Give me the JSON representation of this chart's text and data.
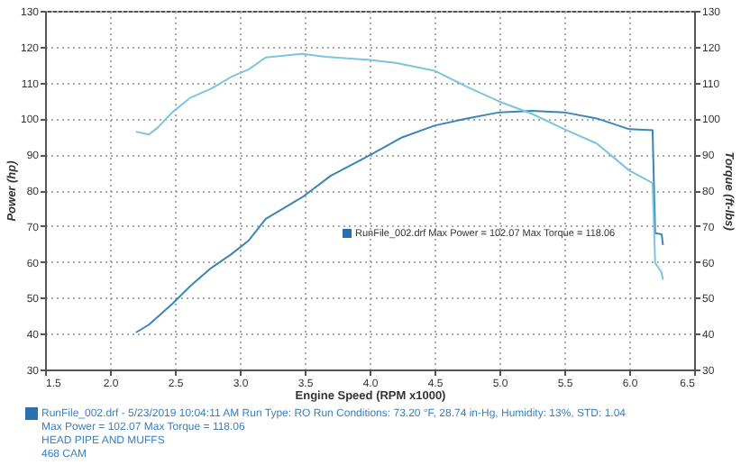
{
  "chart_data": {
    "type": "line",
    "xlabel": "Engine Speed (RPM x1000)",
    "ylabel": "Power (hp)",
    "y2label": "Torque (ft-lbs)",
    "xlim": [
      1.5,
      6.5
    ],
    "xticks": [
      1.5,
      {
        "value": 2,
        "label": "2.0"
      },
      2.5,
      {
        "value": 3,
        "label": "3.0"
      },
      3.5,
      {
        "value": 4,
        "label": "4.0"
      },
      4.5,
      {
        "value": 5,
        "label": "5.0"
      },
      5.5,
      {
        "value": 6,
        "label": "6.0"
      },
      6.5
    ],
    "ylim": [
      30,
      130
    ],
    "yticks": [
      30,
      40,
      50,
      60,
      70,
      80,
      90,
      100,
      110,
      120,
      130
    ],
    "y2lim": [
      30,
      130
    ],
    "y2ticks": [
      30,
      40,
      50,
      60,
      70,
      80,
      90,
      100,
      110,
      120,
      130
    ],
    "grid": true,
    "series": [
      {
        "color": "#3a86b4",
        "x": [
          2.2,
          2.3,
          2.48,
          2.62,
          2.78,
          2.93,
          3.07,
          3.2,
          3.48,
          3.7,
          4.0,
          4.25,
          4.5,
          4.75,
          5.0,
          5.25,
          5.5,
          5.75,
          6.0,
          6.18,
          6.2,
          6.25,
          6.26
        ],
        "values": [
          40.3,
          42.5,
          48.3,
          53.3,
          58.3,
          62,
          66,
          72,
          78,
          84,
          89.7,
          94.7,
          98,
          100,
          101.7,
          102.1,
          101.7,
          100,
          97,
          96.7,
          68,
          67.7,
          64.7
        ]
      },
      {
        "color": "#7cc4e0",
        "axis": "y2",
        "x": [
          2.2,
          2.3,
          2.37,
          2.48,
          2.62,
          2.78,
          2.94,
          3.07,
          3.2,
          3.48,
          3.66,
          4.0,
          4.2,
          4.5,
          4.75,
          5.0,
          5.25,
          5.5,
          5.75,
          6.0,
          6.18,
          6.2,
          6.25,
          6.26
        ],
        "values": [
          96.3,
          95.5,
          97.5,
          101.7,
          105.8,
          108.3,
          111.7,
          113.7,
          117,
          118,
          117.2,
          116.3,
          115.5,
          113.3,
          108.8,
          104.7,
          101.3,
          97,
          93,
          85.5,
          82,
          59.7,
          57,
          55
        ]
      }
    ],
    "annotations": [
      "RunFile_002.drf Max Power = 102.07     Max Torque = 118.06",
      "RunFile_002.drf - 5/23/2019 10:04:11 AM  Run Type: RO  Run Conditions: 73.20 °F, 28.74 in-Hg,  Humidity:  13%, STD: 1.04",
      "Max Power = 102.07  Max Torque = 118.06",
      "HEAD PIPE AND MUFFS",
      "468 CAM"
    ]
  }
}
